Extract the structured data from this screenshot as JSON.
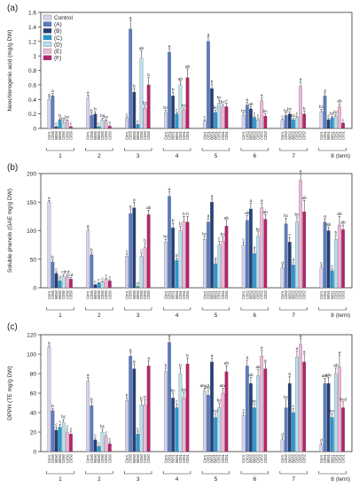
{
  "colors": {
    "Control": "#d3d3ee",
    "(A)": "#5a7cc2",
    "(B)": "#23407a",
    "(C)": "#2899d4",
    "(D)": "#b7dff0",
    "(E)": "#f0b6d6",
    "(F)": "#b8216a"
  },
  "legend_labels": [
    "Control",
    "(A)",
    "(B)",
    "(C)",
    "(D)",
    "(E)",
    "(F)"
  ],
  "sample_labels": {
    "1": [
      "Cont.",
      "C050",
      "B050",
      "B050",
      "C050",
      "C050",
      "C050"
    ],
    "2": [
      "Cont.",
      "C050",
      "B050",
      "B050",
      "C050",
      "C050",
      "C050"
    ],
    "3": [
      "Cont.",
      "C050",
      "B050",
      "B050",
      "C050",
      "C050",
      "C050"
    ],
    "4": [
      "Cont.",
      "C051",
      "B051",
      "B051",
      "C051",
      "C051",
      "C051"
    ],
    "5": [
      "Cont.",
      "C051",
      "B051",
      "B051",
      "C051",
      "C051",
      "C051"
    ],
    "6": [
      "Cont.",
      "C052",
      "B052",
      "B052",
      "C052",
      "C052",
      "C052"
    ],
    "7": [
      "Cont.",
      "C052",
      "B052",
      "B052",
      "C052",
      "C052",
      "C052"
    ],
    "8": [
      "Cont.",
      "C051",
      "B051",
      "B051",
      "C051",
      "C051",
      "C051"
    ]
  },
  "chart_data": [
    {
      "type": "bar",
      "panel_label": "(a)",
      "ylabel": "Neochlorogenic acid (mg/g DW)",
      "xlabel": "(term)",
      "ylim": [
        0,
        1.6
      ],
      "yticks": [
        0,
        0.2,
        0.4,
        0.6,
        0.8,
        1.0,
        1.2,
        1.4,
        1.6
      ],
      "categories": [
        "1",
        "2",
        "3",
        "4",
        "5",
        "6",
        "7",
        "8"
      ],
      "legend_position": "top-left",
      "series": [
        {
          "name": "Control",
          "values": [
            0.4,
            0.42,
            0.14,
            0.22,
            0.1,
            0.18,
            0.11,
            0.23
          ],
          "errors": [
            0.03,
            0.04,
            0.02,
            0.03,
            0.02,
            0.03,
            0.02,
            0.03
          ],
          "letters": [
            "a",
            "a",
            "c",
            "bc",
            "c",
            "bc",
            "c",
            "bc"
          ]
        },
        {
          "name": "(A)",
          "values": [
            0.45,
            0.18,
            1.37,
            1.05,
            1.2,
            0.32,
            0.18,
            0.45
          ],
          "errors": [
            0.03,
            0.03,
            0.12,
            0.05,
            0.06,
            0.04,
            0.03,
            0.04
          ],
          "letters": [
            "a",
            "b",
            "a",
            "a",
            "a",
            "a",
            "bc",
            "a"
          ]
        },
        {
          "name": "(B)",
          "values": [
            0.02,
            0.2,
            0.5,
            0.45,
            0.55,
            0.27,
            0.2,
            0.12
          ],
          "errors": [
            0.01,
            0.03,
            0.05,
            0.05,
            0.06,
            0.03,
            0.03,
            0.02
          ],
          "letters": [
            "c",
            "b",
            "b",
            "b",
            "b",
            "ab",
            "bc",
            "c"
          ]
        },
        {
          "name": "(C)",
          "values": [
            0.12,
            0.02,
            0.05,
            0.2,
            0.22,
            0.15,
            0.12,
            0.15
          ],
          "errors": [
            0.02,
            0.01,
            0.01,
            0.02,
            0.03,
            0.02,
            0.02,
            0.02
          ],
          "letters": [
            "b",
            "c",
            "c",
            "c",
            "bc",
            "c",
            "bc",
            "bc"
          ]
        },
        {
          "name": "(D)",
          "values": [
            0.08,
            0.12,
            0.97,
            0.6,
            0.35,
            0.12,
            0.15,
            0.17
          ],
          "errors": [
            0.02,
            0.02,
            0.1,
            0.05,
            0.04,
            0.02,
            0.02,
            0.02
          ],
          "letters": [
            "bc",
            "bc",
            "ab",
            "ab",
            "bc",
            "c",
            "c",
            "bc"
          ]
        },
        {
          "name": "(E)",
          "values": [
            0.1,
            0.1,
            0.28,
            0.25,
            0.3,
            0.38,
            0.58,
            0.3
          ],
          "errors": [
            0.02,
            0.02,
            0.04,
            0.03,
            0.03,
            0.04,
            0.06,
            0.04
          ],
          "letters": [
            "bc",
            "bc",
            "bc",
            "bc",
            "bc",
            "a",
            "a",
            "ab"
          ]
        },
        {
          "name": "(F)",
          "values": [
            0.02,
            0.03,
            0.6,
            0.7,
            0.3,
            0.17,
            0.2,
            0.07
          ],
          "errors": [
            0.01,
            0.01,
            0.1,
            0.12,
            0.05,
            0.03,
            0.04,
            0.01
          ],
          "letters": [
            "c",
            "c",
            "b",
            "ab",
            "c",
            "bc",
            "b",
            "c"
          ]
        }
      ]
    },
    {
      "type": "bar",
      "panel_label": "(b)",
      "ylabel": "Soluble phenols (GAE mg/g DW)",
      "xlabel": "(term)",
      "ylim": [
        0,
        200
      ],
      "yticks": [
        0,
        50,
        100,
        150,
        200
      ],
      "categories": [
        "1",
        "2",
        "3",
        "4",
        "5",
        "6",
        "7",
        "8"
      ],
      "series": [
        {
          "name": "Control",
          "values": [
            150,
            100,
            55,
            80,
            85,
            75,
            35,
            35
          ],
          "errors": [
            3,
            4,
            5,
            5,
            5,
            5,
            4,
            4
          ],
          "letters": [
            "a",
            "a",
            "c",
            "bc",
            "bc",
            "c",
            "d",
            "c"
          ]
        },
        {
          "name": "(A)",
          "values": [
            45,
            58,
            130,
            160,
            115,
            118,
            112,
            115
          ],
          "errors": [
            4,
            4,
            8,
            8,
            7,
            8,
            10,
            6
          ],
          "letters": [
            "b",
            "b",
            "a",
            "a",
            "a",
            "ab",
            "bc",
            "a"
          ]
        },
        {
          "name": "(B)",
          "values": [
            25,
            5,
            140,
            105,
            150,
            138,
            80,
            100
          ],
          "errors": [
            3,
            1,
            10,
            8,
            6,
            10,
            8,
            6
          ],
          "letters": [
            "c",
            "c",
            "a",
            "b",
            "a",
            "a",
            "c",
            "ab"
          ]
        },
        {
          "name": "(C)",
          "values": [
            12,
            8,
            2,
            48,
            42,
            60,
            40,
            30
          ],
          "errors": [
            2,
            1,
            1,
            4,
            4,
            5,
            4,
            3
          ],
          "letters": [
            "d",
            "c",
            "d",
            "d",
            "d",
            "d",
            "d",
            "c"
          ]
        },
        {
          "name": "(D)",
          "values": [
            20,
            10,
            55,
            100,
            75,
            90,
            115,
            85
          ],
          "errors": [
            3,
            2,
            6,
            8,
            7,
            8,
            9,
            7
          ],
          "letters": [
            "cd",
            "c",
            "c",
            "b",
            "c",
            "bc",
            "bc",
            "b"
          ]
        },
        {
          "name": "(E)",
          "values": [
            20,
            15,
            70,
            115,
            82,
            140,
            188,
            110
          ],
          "errors": [
            3,
            2,
            8,
            10,
            7,
            8,
            12,
            15
          ],
          "letters": [
            "cd",
            "c",
            "b",
            "b",
            "bc",
            "a",
            "a",
            "ab"
          ]
        },
        {
          "name": "(F)",
          "values": [
            15,
            12,
            128,
            115,
            108,
            120,
            133,
            102
          ],
          "errors": [
            3,
            2,
            8,
            10,
            10,
            8,
            20,
            8
          ],
          "letters": [
            "cd",
            "c",
            "ab",
            "b",
            "ab",
            "ab",
            "ab",
            "ab"
          ]
        }
      ]
    },
    {
      "type": "bar",
      "panel_label": "(c)",
      "ylabel": "DPPH (TE mg/g DW)",
      "xlabel": "(term)",
      "ylim": [
        0,
        120
      ],
      "yticks": [
        0,
        20,
        40,
        60,
        80,
        100,
        120
      ],
      "categories": [
        "1",
        "2",
        "3",
        "4",
        "5",
        "6",
        "7",
        "8"
      ],
      "series": [
        {
          "name": "Control",
          "values": [
            107,
            72,
            52,
            82,
            62,
            37,
            12,
            7
          ],
          "errors": [
            2,
            4,
            3,
            4,
            3,
            3,
            3,
            2
          ],
          "letters": [
            "a",
            "a",
            "b",
            "b",
            "abcd",
            "c",
            "d",
            "d"
          ]
        },
        {
          "name": "(A)",
          "values": [
            42,
            47,
            98,
            112,
            58,
            88,
            45,
            70
          ],
          "errors": [
            2,
            4,
            4,
            4,
            5,
            6,
            8,
            5
          ],
          "letters": [
            "b",
            "b",
            "a",
            "a",
            "bcd",
            "a",
            "bc",
            "abc"
          ]
        },
        {
          "name": "(B)",
          "values": [
            22,
            12,
            85,
            55,
            92,
            70,
            70,
            70
          ],
          "errors": [
            3,
            2,
            5,
            5,
            4,
            6,
            7,
            6
          ],
          "letters": [
            "c",
            "c",
            "a",
            "bc",
            "a",
            "ab",
            "b",
            "abc"
          ]
        },
        {
          "name": "(C)",
          "values": [
            25,
            5,
            18,
            45,
            35,
            45,
            40,
            35
          ],
          "errors": [
            3,
            1,
            3,
            4,
            4,
            4,
            4,
            4
          ],
          "letters": [
            "c",
            "c",
            "c",
            "c",
            "cd",
            "bc",
            "c",
            "bcd"
          ]
        },
        {
          "name": "(D)",
          "values": [
            30,
            20,
            48,
            80,
            45,
            78,
            97,
            80
          ],
          "errors": [
            3,
            3,
            4,
            6,
            5,
            6,
            6,
            6
          ],
          "letters": [
            "bc",
            "bc",
            "b",
            "b",
            "bc",
            "ab",
            "a",
            "ab"
          ]
        },
        {
          "name": "(E)",
          "values": [
            20,
            15,
            48,
            55,
            60,
            98,
            110,
            87
          ],
          "errors": [
            3,
            2,
            5,
            6,
            5,
            6,
            6,
            12
          ],
          "letters": [
            "c",
            "c",
            "b",
            "bc",
            "abc",
            "a",
            "a",
            "a"
          ]
        },
        {
          "name": "(F)",
          "values": [
            18,
            8,
            88,
            90,
            82,
            85,
            92,
            45
          ],
          "errors": [
            3,
            2,
            5,
            6,
            6,
            6,
            8,
            6
          ],
          "letters": [
            "c",
            "c",
            "a",
            "b",
            "ab",
            "a",
            "a",
            "bcd"
          ]
        }
      ]
    }
  ]
}
